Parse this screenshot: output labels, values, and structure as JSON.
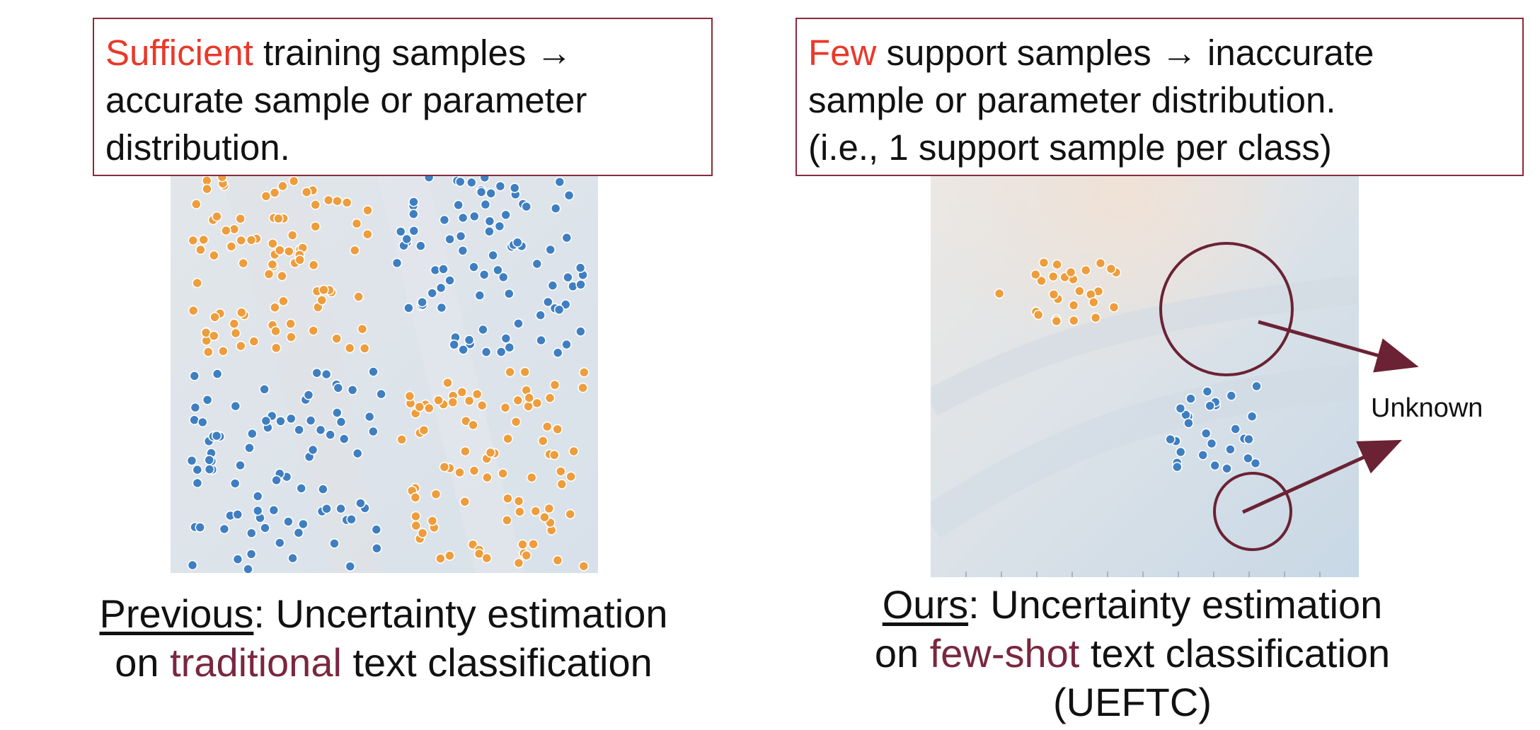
{
  "left_panel": {
    "box": {
      "highlight": "Sufficient",
      "line1_rest": " training samples →",
      "line2": "accurate sample or parameter",
      "line3": "distribution."
    },
    "caption": {
      "underlined": "Previous",
      "line1_rest": ": Uncertainty estimation",
      "line2_prefix": "on ",
      "line2_highlight": "traditional",
      "line2_suffix": " text classification"
    }
  },
  "right_panel": {
    "box": {
      "highlight": "Few",
      "line1_rest": " support samples → inaccurate",
      "line2": "sample or parameter distribution.",
      "line3": "(i.e., 1 support sample per class)"
    },
    "caption": {
      "underlined": "Ours",
      "line1_rest": ": Uncertainty estimation",
      "line2_prefix": "on ",
      "line2_highlight": "few-shot",
      "line2_suffix": " text classification",
      "line3": "(UEFTC)"
    },
    "annotation": "Unknown"
  },
  "colors": {
    "highlight_red": "#e8392b",
    "highlight_maroon": "#7a2740",
    "box_border": "#8a2a3c",
    "class_orange": "#ee9d3c",
    "class_blue": "#3f7fc1",
    "circle_arrow": "#6b2234"
  }
}
